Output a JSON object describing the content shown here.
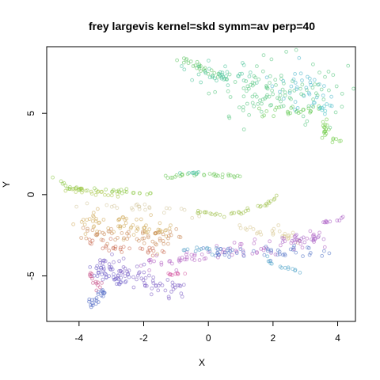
{
  "chart_data": {
    "type": "scatter",
    "title": "frey largevis kernel=skd symm=av perp=40",
    "xlabel": "X",
    "ylabel": "Y",
    "xlim": [
      -5.0,
      4.55
    ],
    "ylim": [
      -7.8,
      9.1
    ],
    "xticks": [
      -4,
      -2,
      0,
      2,
      4
    ],
    "yticks": [
      -5,
      0,
      5
    ],
    "xtick_labels": [
      "-4",
      "-2",
      "0",
      "2",
      "4"
    ],
    "ytick_labels": [
      "-5",
      "0",
      "5"
    ],
    "grid": false,
    "legend": "none",
    "marker": "open circle",
    "clusters": [
      {
        "color": "#59c35f",
        "shape": "line",
        "points": [
          [
            -1.2,
            8.3
          ],
          [
            -0.8,
            8.3
          ],
          [
            -0.3,
            7.9
          ],
          [
            0.5,
            7.1
          ]
        ],
        "n": 25,
        "spread": 0.12
      },
      {
        "color": "#47c397",
        "shape": "blob",
        "center": [
          0.5,
          7.4
        ],
        "sd": [
          0.55,
          0.45
        ],
        "n": 40
      },
      {
        "color": "#52c47c",
        "shape": "blob",
        "center": [
          2.2,
          6.2
        ],
        "sd": [
          0.9,
          0.9
        ],
        "n": 110
      },
      {
        "color": "#46b5c9",
        "shape": "blob",
        "center": [
          2.9,
          6.5
        ],
        "sd": [
          0.45,
          0.5
        ],
        "n": 35
      },
      {
        "color": "#5fc84e",
        "shape": "line",
        "points": [
          [
            1.6,
            5.0
          ],
          [
            2.6,
            5.0
          ],
          [
            3.5,
            5.3
          ]
        ],
        "n": 25,
        "spread": 0.18
      },
      {
        "color": "#6fcc46",
        "shape": "line",
        "points": [
          [
            3.6,
            4.5
          ],
          [
            3.65,
            3.5
          ],
          [
            3.9,
            3.4
          ],
          [
            4.1,
            3.3
          ]
        ],
        "n": 22,
        "spread": 0.1
      },
      {
        "color": "#49c3c6",
        "shape": "blob",
        "center": [
          3.6,
          5.4
        ],
        "sd": [
          0.18,
          0.2
        ],
        "n": 10
      },
      {
        "color": "#6bc857",
        "shape": "line",
        "points": [
          [
            -1.3,
            1.1
          ],
          [
            -0.5,
            1.3
          ],
          [
            0.3,
            1.2
          ],
          [
            1.0,
            1.1
          ]
        ],
        "n": 30,
        "spread": 0.05
      },
      {
        "color": "#3fbf9a",
        "shape": "blob",
        "center": [
          -0.6,
          1.35
        ],
        "sd": [
          0.15,
          0.05
        ],
        "n": 8
      },
      {
        "color": "#8bc642",
        "shape": "line",
        "points": [
          [
            -4.85,
            1.1
          ],
          [
            -4.6,
            1.05
          ],
          [
            -4.5,
            0.7
          ],
          [
            -4.3,
            0.35
          ],
          [
            -3.8,
            0.35
          ],
          [
            -3.2,
            0.3
          ],
          [
            -2.5,
            0.15
          ],
          [
            -1.8,
            0.05
          ]
        ],
        "n": 40,
        "spread": 0.06
      },
      {
        "color": "#aac648",
        "shape": "line",
        "points": [
          [
            -4.5,
            0.2
          ],
          [
            -3.8,
            0.2
          ],
          [
            -3.3,
            0.0
          ],
          [
            -2.8,
            -0.05
          ]
        ],
        "n": 20,
        "spread": 0.12
      },
      {
        "color": "#9cbf47",
        "shape": "line",
        "points": [
          [
            -0.3,
            -1.1
          ],
          [
            0.5,
            -1.3
          ],
          [
            1.2,
            -1.0
          ],
          [
            1.8,
            -0.6
          ],
          [
            2.0,
            -0.3
          ],
          [
            2.1,
            -0.1
          ]
        ],
        "n": 35,
        "spread": 0.06
      },
      {
        "color": "#d4c79d",
        "shape": "line",
        "points": [
          [
            -4.3,
            -0.6
          ],
          [
            -3.0,
            -0.75
          ],
          [
            -2.0,
            -0.8
          ],
          [
            -1.0,
            -0.85
          ],
          [
            0.0,
            -1.0
          ]
        ],
        "n": 24,
        "spread": 0.18
      },
      {
        "color": "#d0a95a",
        "shape": "line",
        "points": [
          [
            -3.8,
            -1.6
          ],
          [
            -3.0,
            -1.9
          ],
          [
            -2.0,
            -2.1
          ],
          [
            -1.3,
            -2.3
          ]
        ],
        "n": 70,
        "spread": 0.35
      },
      {
        "color": "#c98753",
        "shape": "line",
        "points": [
          [
            -3.9,
            -2.2
          ],
          [
            -3.0,
            -2.6
          ],
          [
            -2.0,
            -2.7
          ],
          [
            -1.0,
            -2.75
          ]
        ],
        "n": 55,
        "spread": 0.3
      },
      {
        "color": "#c9684f",
        "shape": "line",
        "points": [
          [
            -3.9,
            -2.9
          ],
          [
            -3.0,
            -3.2
          ],
          [
            -2.0,
            -3.4
          ],
          [
            -1.4,
            -3.6
          ]
        ],
        "n": 30,
        "spread": 0.18
      },
      {
        "color": "#d7c68f",
        "shape": "line",
        "points": [
          [
            0.8,
            -2.3
          ],
          [
            1.5,
            -2.4
          ],
          [
            2.1,
            -2.3
          ],
          [
            2.8,
            -2.7
          ]
        ],
        "n": 28,
        "spread": 0.2
      },
      {
        "color": "#c64f86",
        "shape": "line",
        "points": [
          [
            -3.6,
            -5.0
          ],
          [
            -3.5,
            -5.4
          ],
          [
            -3.25,
            -5.8
          ]
        ],
        "n": 14,
        "spread": 0.1
      },
      {
        "color": "#d65aa3",
        "shape": "line",
        "points": [
          [
            -1.3,
            -4.9
          ],
          [
            -0.7,
            -4.8
          ]
        ],
        "n": 10,
        "spread": 0.07
      },
      {
        "color": "#b15cc1",
        "shape": "line",
        "points": [
          [
            -2.0,
            -4.2
          ],
          [
            -1.0,
            -4.0
          ],
          [
            0.0,
            -3.8
          ],
          [
            1.0,
            -3.4
          ],
          [
            2.0,
            -3.1
          ],
          [
            3.0,
            -2.8
          ],
          [
            3.7,
            -2.6
          ]
        ],
        "n": 80,
        "spread": 0.3
      },
      {
        "color": "#7c5dc4",
        "shape": "line",
        "points": [
          [
            -3.2,
            -4.0
          ],
          [
            -2.6,
            -4.8
          ],
          [
            -2.0,
            -5.3
          ],
          [
            -1.5,
            -5.6
          ],
          [
            -0.8,
            -5.9
          ]
        ],
        "n": 70,
        "spread": 0.35
      },
      {
        "color": "#6b5bc7",
        "shape": "line",
        "points": [
          [
            -3.5,
            -4.6
          ],
          [
            -3.0,
            -5.0
          ],
          [
            -2.5,
            -5.3
          ]
        ],
        "n": 40,
        "spread": 0.25
      },
      {
        "color": "#5272c6",
        "shape": "line",
        "points": [
          [
            0.0,
            -3.7
          ],
          [
            1.0,
            -3.5
          ],
          [
            2.0,
            -3.5
          ],
          [
            2.8,
            -3.4
          ],
          [
            3.6,
            -3.6
          ]
        ],
        "n": 50,
        "spread": 0.18
      },
      {
        "color": "#4a64c2",
        "shape": "line",
        "points": [
          [
            -3.65,
            -6.9
          ],
          [
            -3.5,
            -6.5
          ],
          [
            -3.4,
            -6.1
          ],
          [
            -3.2,
            -5.9
          ]
        ],
        "n": 22,
        "spread": 0.12
      },
      {
        "color": "#4da2c8",
        "shape": "line",
        "points": [
          [
            1.7,
            -3.9
          ],
          [
            2.3,
            -4.4
          ],
          [
            2.9,
            -4.9
          ]
        ],
        "n": 14,
        "spread": 0.08
      },
      {
        "color": "#4b9bc5",
        "shape": "line",
        "points": [
          [
            -0.8,
            -3.4
          ],
          [
            -0.3,
            -3.3
          ],
          [
            0.2,
            -3.4
          ]
        ],
        "n": 12,
        "spread": 0.1
      },
      {
        "color": "#a758c3",
        "shape": "line",
        "points": [
          [
            3.5,
            -1.6
          ],
          [
            3.8,
            -1.7
          ],
          [
            4.1,
            -1.5
          ],
          [
            4.25,
            -1.4
          ]
        ],
        "n": 10,
        "spread": 0.05
      },
      {
        "color": "#a05bc3",
        "shape": "line",
        "points": [
          [
            2.4,
            -2.8
          ],
          [
            3.0,
            -2.7
          ],
          [
            3.5,
            -2.6
          ]
        ],
        "n": 20,
        "spread": 0.15
      }
    ]
  }
}
